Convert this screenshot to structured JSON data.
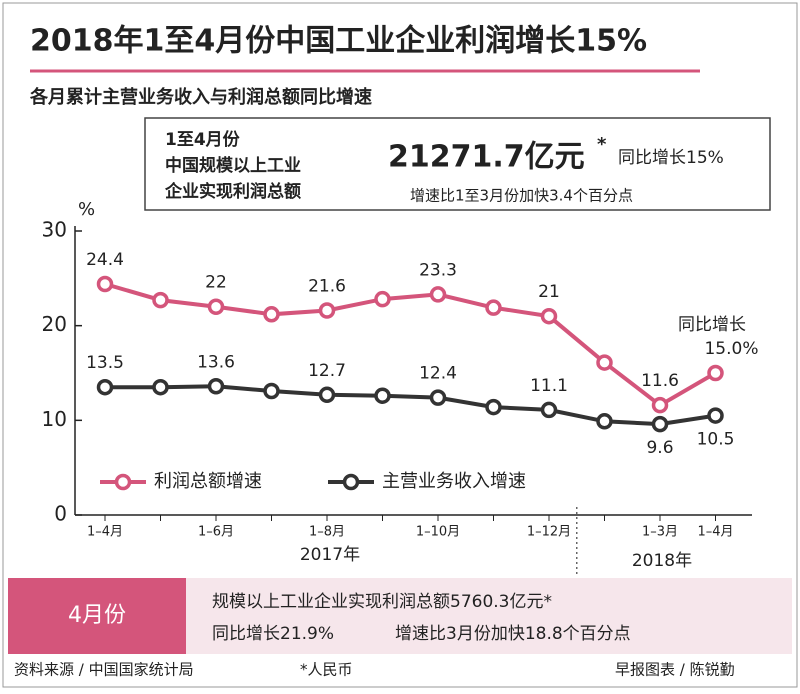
{
  "header": {
    "title": "2018年1至4月份中国工业企业利润增长15%",
    "subtitle": "各月累计主营业务收入与利润总额同比增速"
  },
  "box": {
    "left_lines": [
      "1至4月份",
      "中国规模以上工业",
      "企业实现利润总额"
    ],
    "amount": "21271.7亿元",
    "asterisk": "*",
    "growth": "同比增长15%",
    "note": "增速比1至3月份加快3.4个百分点"
  },
  "chart_data": {
    "type": "line",
    "y_label": "%",
    "categories": [
      "1–4月",
      null,
      "1–6月",
      null,
      "1–8月",
      null,
      "1–10月",
      null,
      "1–12月",
      null,
      "1–3月",
      "1–4月"
    ],
    "years": [
      "2017年",
      "2018年"
    ],
    "annotation": "同比增长",
    "series": [
      {
        "name": "利润总额增速",
        "color": "#d4557b",
        "values": [
          24.4,
          22.7,
          22,
          21.2,
          21.6,
          22.8,
          23.3,
          21.9,
          21,
          16.1,
          11.6,
          15.0
        ],
        "value_labels": [
          "24.4",
          null,
          "22",
          null,
          "21.6",
          null,
          "23.3",
          null,
          "21",
          null,
          "11.6",
          "15.0%"
        ]
      },
      {
        "name": "主营业务收入增速",
        "color": "#333333",
        "values": [
          13.5,
          13.5,
          13.6,
          13.1,
          12.7,
          12.6,
          12.4,
          11.4,
          11.1,
          9.9,
          9.6,
          10.5
        ],
        "value_labels": [
          "13.5",
          null,
          "13.6",
          null,
          "12.7",
          null,
          "12.4",
          null,
          "11.1",
          null,
          "9.6",
          "10.5"
        ]
      }
    ],
    "ylim": [
      0,
      30
    ],
    "yticks": [
      0,
      10,
      20,
      30
    ]
  },
  "panel": {
    "label": "4月份",
    "line1": "规模以上工业企业实现利润总额5760.3亿元*",
    "line2a": "同比增长21.9%",
    "line2b": "增速比3月份加快18.8个百分点"
  },
  "footer": {
    "source": "资料来源 / 中国国家统计局",
    "currency": "*人民币",
    "credit": "早报图表 / 陈锐勤"
  }
}
